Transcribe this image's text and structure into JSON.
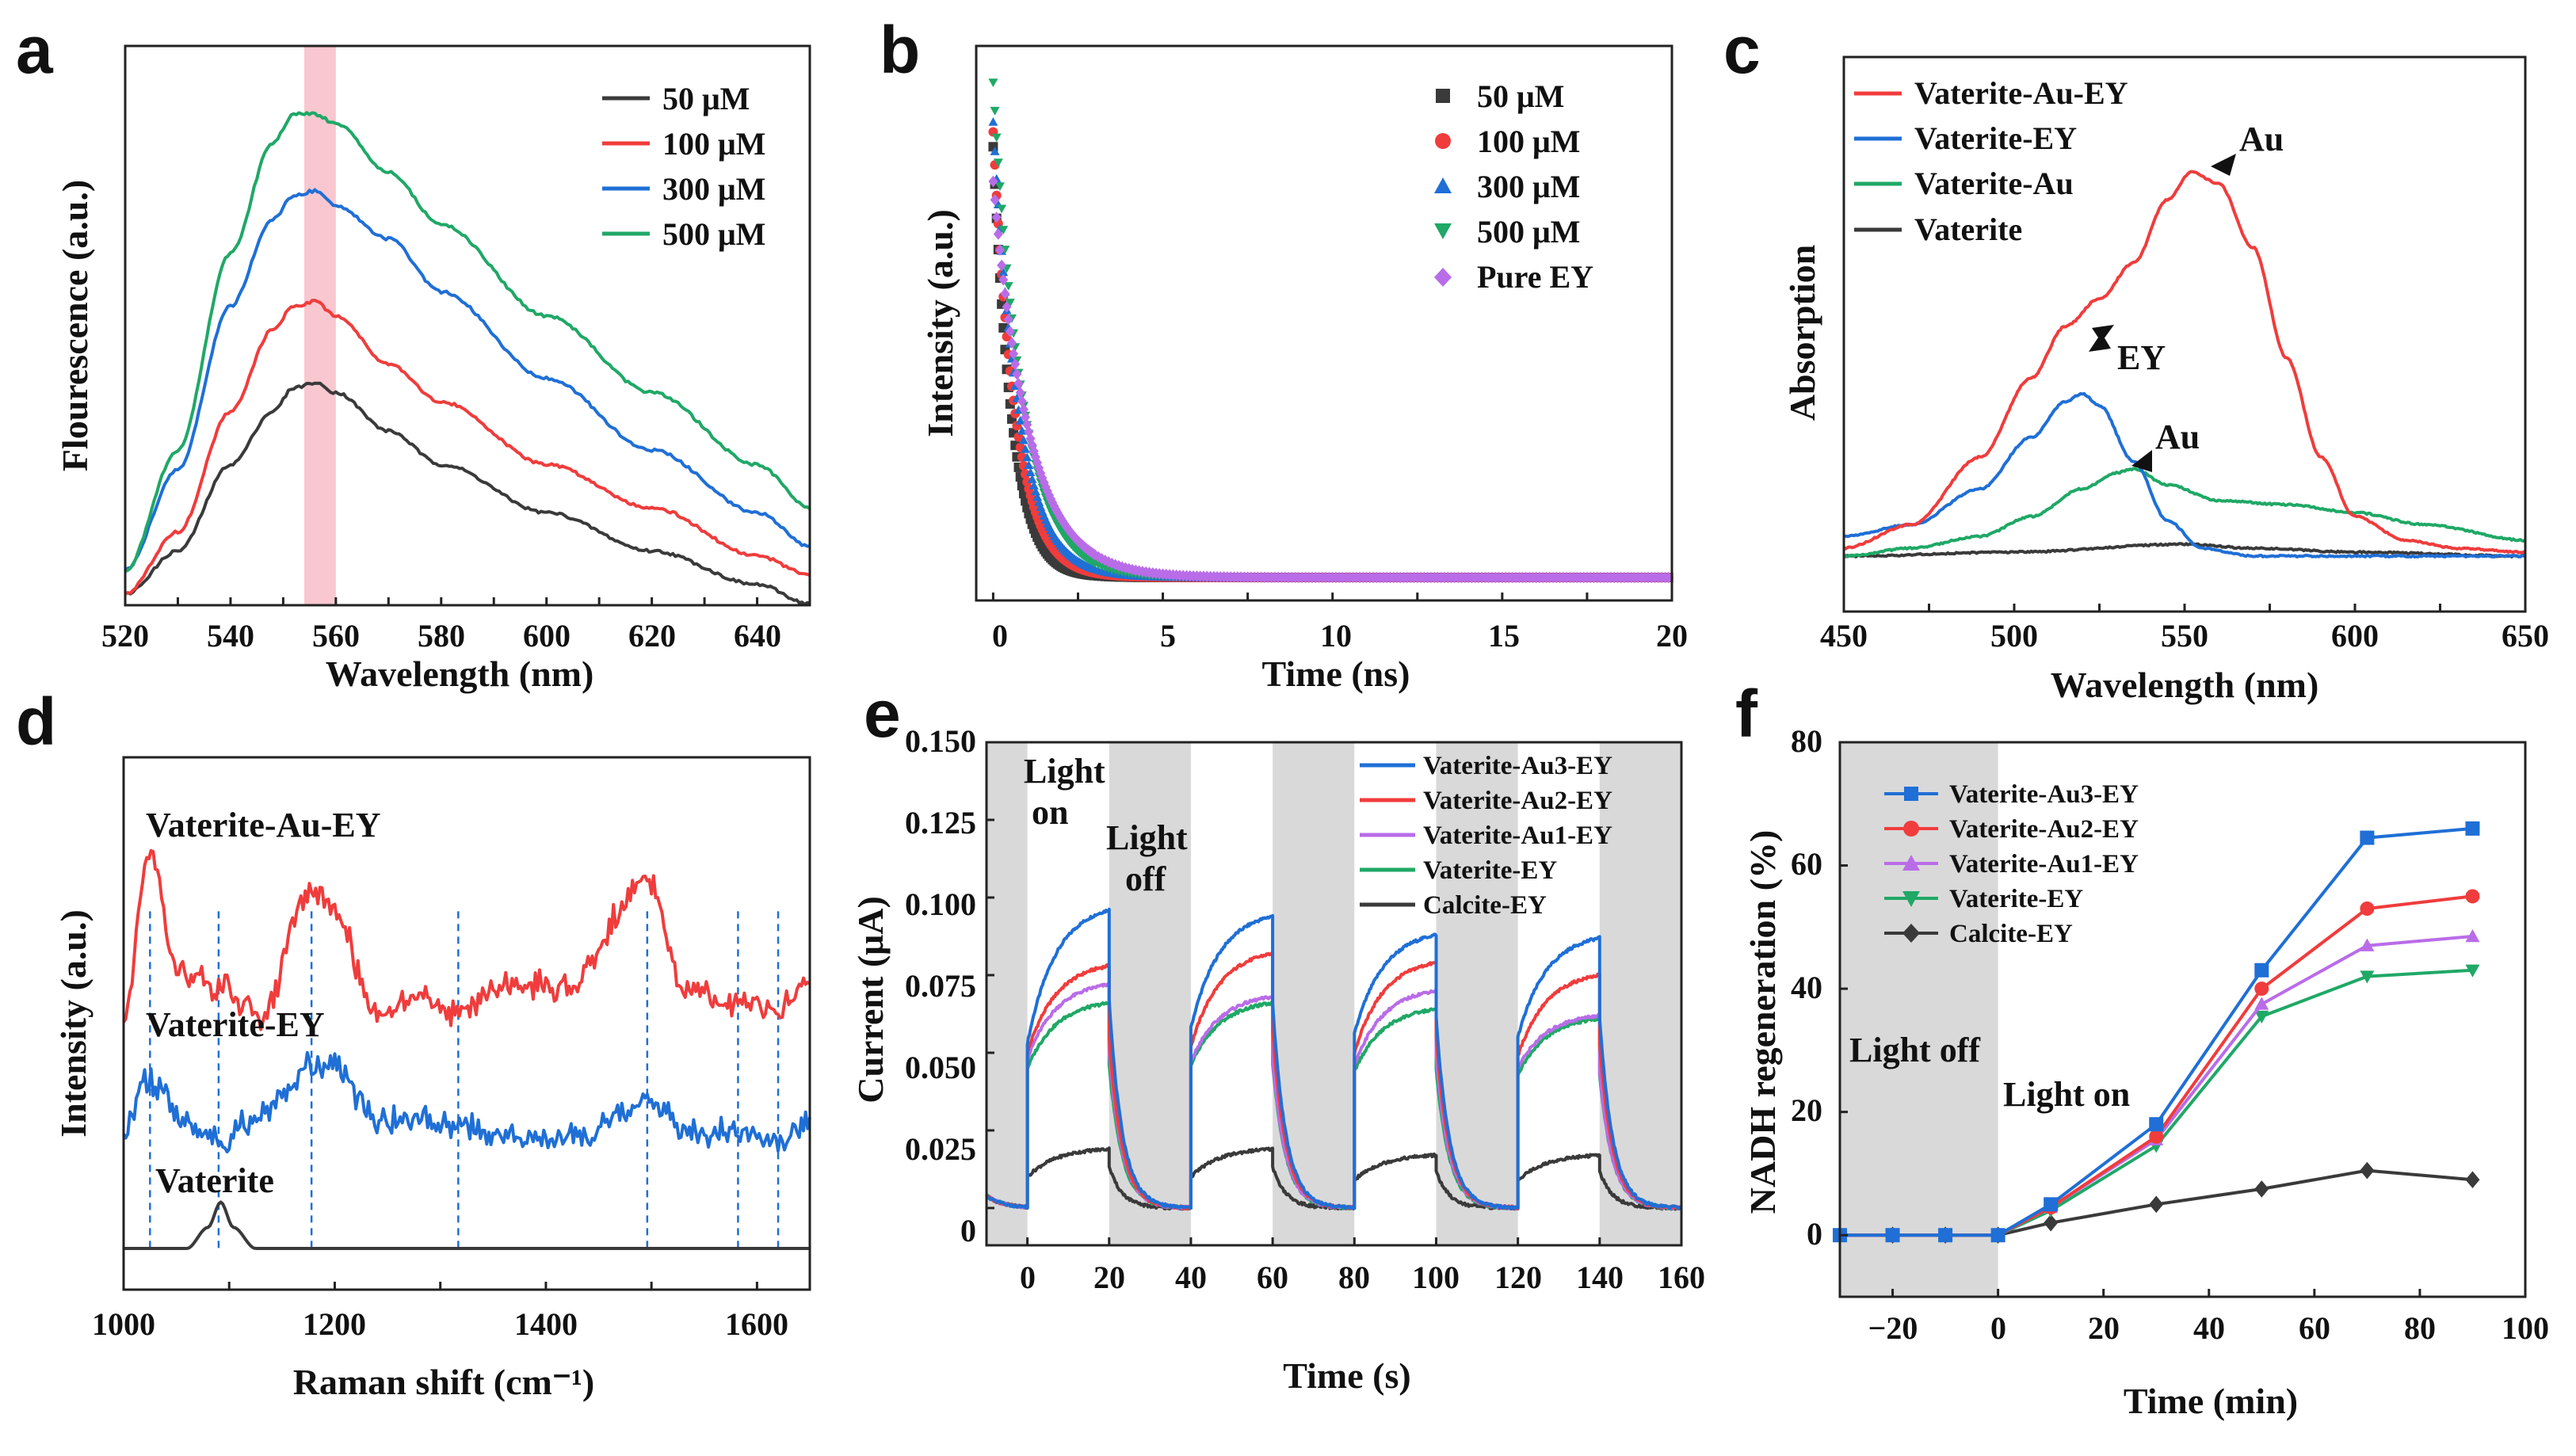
{
  "colors": {
    "black": "#3a3a3a",
    "red": "#f03c3c",
    "blue": "#1f6fd6",
    "green": "#1fa866",
    "purple": "#b96ce8",
    "pink": "#f9c7cf",
    "gray": "#d9d9d9",
    "axis": "#222222"
  },
  "chart_data": [
    {
      "panel": "a",
      "type": "line",
      "xlabel": "Wavelength (nm)",
      "ylabel": "Flourescence (a.u.)",
      "xlim": [
        520,
        650
      ],
      "ylim": [
        0,
        1
      ],
      "xticks": [
        "520",
        "540",
        "560",
        "580",
        "600",
        "620",
        "640"
      ],
      "highlight_band": [
        554,
        560
      ],
      "series": [
        {
          "name": "50 μM",
          "color": "black",
          "x": [
            520,
            530,
            540,
            548,
            552,
            556,
            560,
            570,
            580,
            600,
            620,
            640,
            650
          ],
          "y": [
            0,
            0.09,
            0.27,
            0.38,
            0.43,
            0.44,
            0.42,
            0.34,
            0.27,
            0.17,
            0.09,
            0.02,
            -0.02
          ]
        },
        {
          "name": "100 μM",
          "color": "red",
          "x": [
            520,
            530,
            540,
            548,
            552,
            556,
            560,
            570,
            580,
            600,
            620,
            640,
            650
          ],
          "y": [
            0,
            0.13,
            0.38,
            0.55,
            0.6,
            0.61,
            0.58,
            0.48,
            0.4,
            0.27,
            0.18,
            0.08,
            0.04
          ]
        },
        {
          "name": "300 μM",
          "color": "blue",
          "x": [
            520,
            530,
            540,
            548,
            552,
            556,
            560,
            570,
            580,
            600,
            620,
            640,
            650
          ],
          "y": [
            0.05,
            0.26,
            0.6,
            0.78,
            0.83,
            0.84,
            0.81,
            0.74,
            0.63,
            0.45,
            0.3,
            0.17,
            0.1
          ]
        },
        {
          "name": "500 μM",
          "color": "green",
          "x": [
            520,
            530,
            540,
            548,
            552,
            556,
            560,
            570,
            580,
            600,
            620,
            640,
            650
          ],
          "y": [
            0.05,
            0.3,
            0.71,
            0.94,
            1.0,
            1.0,
            0.98,
            0.88,
            0.77,
            0.58,
            0.42,
            0.27,
            0.18
          ]
        }
      ]
    },
    {
      "panel": "b",
      "type": "scatter",
      "xlabel": "Time (ns)",
      "ylabel": "Intensity (a.u.)",
      "xlim": [
        -0.5,
        20
      ],
      "ylim": [
        0,
        1.05
      ],
      "xticks": [
        "0",
        "5",
        "10",
        "15",
        "20"
      ],
      "series": [
        {
          "name": "50 μM",
          "color": "black",
          "marker": "square",
          "amp": 0.87,
          "tau": 0.55
        },
        {
          "name": "100 μM",
          "color": "red",
          "marker": "circle",
          "amp": 0.9,
          "tau": 0.65
        },
        {
          "name": "300 μM",
          "color": "blue",
          "marker": "triangle",
          "amp": 0.92,
          "tau": 0.75
        },
        {
          "name": "500 μM",
          "color": "green",
          "marker": "triangle-down",
          "amp": 1.0,
          "tau": 0.85
        },
        {
          "name": "Pure EY",
          "color": "purple",
          "marker": "diamond",
          "amp": 0.8,
          "tau": 1.05
        }
      ]
    },
    {
      "panel": "c",
      "type": "line",
      "xlabel": "Wavelength (nm)",
      "ylabel": "Absorption",
      "xlim": [
        450,
        650
      ],
      "ylim": [
        0,
        1
      ],
      "xticks": [
        "450",
        "500",
        "550",
        "600",
        "650"
      ],
      "annotations": [
        {
          "text": "Au",
          "x": 554,
          "y": 1.04
        },
        {
          "text": "EY",
          "x": 521,
          "y": 0.52
        },
        {
          "text": "Au",
          "x": 533,
          "y": 0.31
        }
      ],
      "series": [
        {
          "name": "Vaterite-Au-EY",
          "color": "red",
          "x": [
            450,
            470,
            490,
            505,
            515,
            525,
            535,
            545,
            552,
            560,
            570,
            580,
            590,
            600,
            615,
            630,
            650
          ],
          "y": [
            0.02,
            0.08,
            0.25,
            0.45,
            0.58,
            0.65,
            0.74,
            0.9,
            0.97,
            0.94,
            0.78,
            0.5,
            0.25,
            0.1,
            0.04,
            0.02,
            0.01
          ]
        },
        {
          "name": "Vaterite-EY",
          "color": "blue",
          "x": [
            450,
            470,
            490,
            505,
            515,
            520,
            525,
            535,
            545,
            555,
            570,
            600,
            650
          ],
          "y": [
            0.05,
            0.08,
            0.17,
            0.3,
            0.39,
            0.41,
            0.38,
            0.24,
            0.09,
            0.02,
            0,
            0,
            0
          ]
        },
        {
          "name": "Vaterite-Au",
          "color": "green",
          "x": [
            450,
            470,
            490,
            505,
            520,
            530,
            535,
            545,
            560,
            580,
            600,
            620,
            650
          ],
          "y": [
            0.0,
            0.02,
            0.05,
            0.1,
            0.17,
            0.21,
            0.22,
            0.18,
            0.14,
            0.13,
            0.11,
            0.08,
            0.04
          ]
        },
        {
          "name": "Vaterite",
          "color": "black",
          "x": [
            450,
            500,
            550,
            570,
            600,
            650
          ],
          "y": [
            0,
            0.01,
            0.03,
            0.02,
            0.01,
            0.0
          ]
        }
      ]
    },
    {
      "panel": "d",
      "type": "line",
      "xlabel": "Raman shift (cm⁻¹)",
      "ylabel": "Intensity (a.u.)",
      "xlim": [
        1000,
        1650
      ],
      "xticks": [
        "1000",
        "1200",
        "1400",
        "1600"
      ],
      "reference_lines": [
        1025,
        1090,
        1178,
        1317,
        1496,
        1582,
        1620
      ],
      "labels": [
        "Vaterite-Au-EY",
        "Vaterite-EY",
        "Vaterite"
      ],
      "series": [
        {
          "name": "Vaterite-Au-EY",
          "color": "red",
          "x": [
            1000,
            1025,
            1050,
            1090,
            1130,
            1178,
            1200,
            1240,
            1280,
            1317,
            1360,
            1420,
            1496,
            1530,
            1580,
            1620,
            1650
          ],
          "y": [
            0.55,
            0.95,
            0.65,
            0.62,
            0.55,
            0.86,
            0.8,
            0.55,
            0.6,
            0.55,
            0.63,
            0.62,
            0.88,
            0.62,
            0.58,
            0.57,
            0.62
          ]
        },
        {
          "name": "Vaterite-EY",
          "color": "blue",
          "x": [
            1000,
            1025,
            1060,
            1090,
            1130,
            1178,
            1200,
            1240,
            1280,
            1317,
            1360,
            1420,
            1496,
            1540,
            1580,
            1620,
            1650
          ],
          "y": [
            0.28,
            0.4,
            0.3,
            0.25,
            0.32,
            0.43,
            0.44,
            0.3,
            0.31,
            0.29,
            0.27,
            0.26,
            0.35,
            0.27,
            0.28,
            0.26,
            0.29
          ]
        },
        {
          "name": "Vaterite",
          "color": "black",
          "x": [
            1000,
            1060,
            1080,
            1092,
            1104,
            1125,
            1650
          ],
          "y": [
            0,
            0,
            0.05,
            0.11,
            0.05,
            0,
            0
          ]
        }
      ]
    },
    {
      "panel": "e",
      "type": "line",
      "xlabel": "Time (s)",
      "ylabel": "Current (μA)",
      "xlim": [
        -10,
        160
      ],
      "ylim": [
        -0.012,
        0.15
      ],
      "yticks": [
        "0",
        "0.025",
        "0.050",
        "0.075",
        "0.100",
        "0.125",
        "0.150"
      ],
      "xticks": [
        "0",
        "20",
        "40",
        "60",
        "80",
        "100",
        "120",
        "140",
        "160"
      ],
      "dark_intervals": [
        [
          -10,
          0
        ],
        [
          20,
          40
        ],
        [
          60,
          80
        ],
        [
          100,
          120
        ],
        [
          140,
          160
        ]
      ],
      "annotations": [
        "Light on",
        "Light off"
      ],
      "series": [
        {
          "name": "Vaterite-Au3-EY",
          "color": "blue",
          "peaks": [
            0.096,
            0.094,
            0.088,
            0.087
          ],
          "steps": [
            0.053,
            0.058,
            0.056,
            0.055
          ]
        },
        {
          "name": "Vaterite-Au2-EY",
          "color": "red",
          "peaks": [
            0.078,
            0.082,
            0.079,
            0.075
          ],
          "steps": [
            0.05,
            0.052,
            0.05,
            0.049
          ]
        },
        {
          "name": "Vaterite-Au1-EY",
          "color": "purple",
          "peaks": [
            0.072,
            0.068,
            0.07,
            0.062
          ],
          "steps": [
            0.048,
            0.047,
            0.046,
            0.045
          ]
        },
        {
          "name": "Vaterite-EY",
          "color": "green",
          "peaks": [
            0.066,
            0.066,
            0.064,
            0.061
          ],
          "steps": [
            0.045,
            0.046,
            0.044,
            0.043
          ]
        },
        {
          "name": "Calcite-EY",
          "color": "black",
          "peaks": [
            0.019,
            0.019,
            0.017,
            0.017
          ],
          "steps": [
            0.01,
            0.01,
            0.009,
            0.009
          ]
        }
      ]
    },
    {
      "panel": "f",
      "type": "line",
      "xlabel": "Time (min)",
      "ylabel": "NADH regeneration (%)",
      "xlim": [
        -30,
        100
      ],
      "ylim": [
        -10,
        80
      ],
      "xticks": [
        "−20",
        "0",
        "20",
        "40",
        "60",
        "80",
        "100"
      ],
      "yticks": [
        "0",
        "20",
        "40",
        "60",
        "80"
      ],
      "dark_intervals": [
        [
          -30,
          0
        ]
      ],
      "annotations": [
        "Light off",
        "Light on"
      ],
      "x": [
        -30,
        -20,
        -10,
        0,
        10,
        30,
        50,
        70,
        90
      ],
      "series": [
        {
          "name": "Vaterite-Au3-EY",
          "color": "blue",
          "marker": "square",
          "values": [
            0,
            0,
            0,
            0,
            5,
            18,
            43,
            64.5,
            66
          ]
        },
        {
          "name": "Vaterite-Au2-EY",
          "color": "red",
          "marker": "circle",
          "values": [
            0,
            0,
            0,
            0,
            4.5,
            16,
            40,
            53,
            55
          ]
        },
        {
          "name": "Vaterite-Au1-EY",
          "color": "purple",
          "marker": "triangle",
          "values": [
            0,
            0,
            0,
            0,
            4.5,
            15.5,
            37.5,
            47,
            48.5
          ]
        },
        {
          "name": "Vaterite-EY",
          "color": "green",
          "marker": "triangle-down",
          "values": [
            0,
            0,
            0,
            0,
            4,
            14.5,
            35.5,
            42,
            43
          ]
        },
        {
          "name": "Calcite-EY",
          "color": "black",
          "marker": "diamond",
          "values": [
            0,
            0,
            0,
            0,
            2,
            5,
            7.5,
            10.5,
            9
          ]
        }
      ]
    }
  ]
}
